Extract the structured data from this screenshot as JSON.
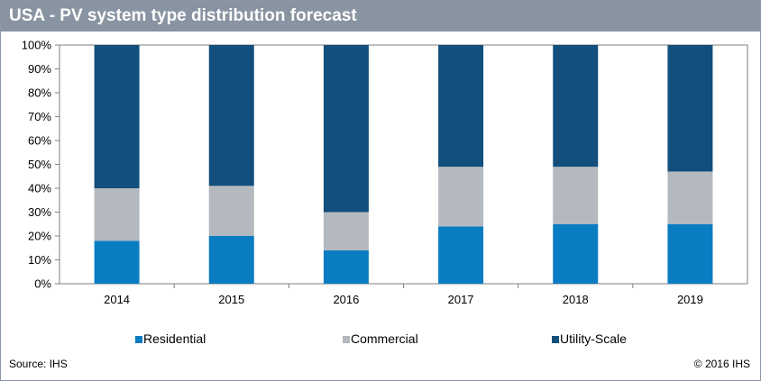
{
  "header": {
    "title": "USA - PV system type distribution forecast"
  },
  "footer": {
    "source": "Source: IHS",
    "copyright": "© 2016 IHS"
  },
  "colors": {
    "title_bar": "#8994a2",
    "residential": "#0a7cc2",
    "commercial": "#b4b9bf",
    "utility": "#124f7c"
  },
  "chart_data": {
    "type": "bar",
    "stacked": true,
    "categories": [
      "2014",
      "2015",
      "2016",
      "2017",
      "2018",
      "2019"
    ],
    "series": [
      {
        "name": "Residential",
        "values": [
          18,
          20,
          14,
          24,
          25,
          25
        ]
      },
      {
        "name": "Commercial",
        "values": [
          22,
          21,
          16,
          25,
          24,
          22
        ]
      },
      {
        "name": "Utility-Scale",
        "values": [
          60,
          59,
          70,
          51,
          51,
          53
        ]
      }
    ],
    "ylim": [
      0,
      100
    ],
    "yticks": [
      "0%",
      "10%",
      "20%",
      "30%",
      "40%",
      "50%",
      "60%",
      "70%",
      "80%",
      "90%",
      "100%"
    ],
    "grid": false,
    "legend_position": "bottom",
    "title": "USA - PV system type distribution forecast",
    "xlabel": "",
    "ylabel": ""
  }
}
